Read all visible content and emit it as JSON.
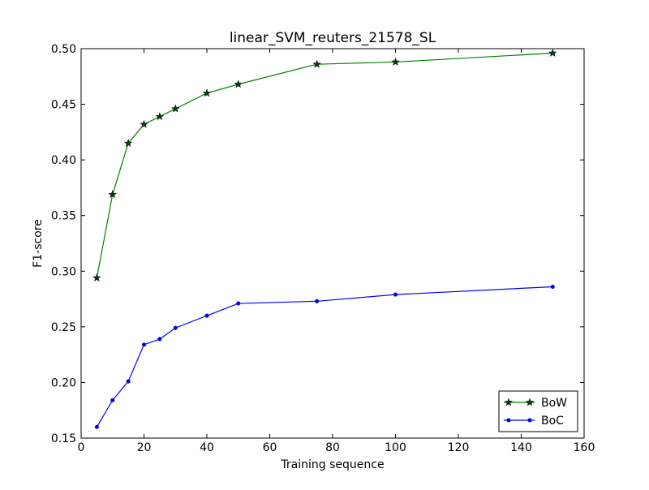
{
  "chart_data": {
    "type": "line",
    "title": "linear_SVM_reuters_21578_SL",
    "xlabel": "Training sequence",
    "ylabel": "F1-score",
    "xlim": [
      0,
      160
    ],
    "ylim": [
      0.15,
      0.5
    ],
    "xticks": [
      0,
      20,
      40,
      60,
      80,
      100,
      120,
      140,
      160
    ],
    "xtick_labels": [
      "0",
      "20",
      "40",
      "60",
      "80",
      "100",
      "120",
      "140",
      "160"
    ],
    "yticks": [
      0.15,
      0.2,
      0.25,
      0.3,
      0.35,
      0.4,
      0.45,
      0.5
    ],
    "ytick_labels": [
      "0.15",
      "0.20",
      "0.25",
      "0.30",
      "0.35",
      "0.40",
      "0.45",
      "0.50"
    ],
    "grid": false,
    "legend_position": "bottom-right",
    "x": [
      5,
      10,
      15,
      20,
      25,
      30,
      40,
      50,
      75,
      100,
      150
    ],
    "series": [
      {
        "name": "BoW",
        "color": "#008000",
        "marker": "star",
        "values": [
          0.294,
          0.369,
          0.415,
          0.432,
          0.439,
          0.446,
          0.46,
          0.468,
          0.486,
          0.488,
          0.496
        ]
      },
      {
        "name": "BoC",
        "color": "#0000ff",
        "marker": "dot",
        "values": [
          0.16,
          0.184,
          0.201,
          0.234,
          0.239,
          0.249,
          0.26,
          0.271,
          0.273,
          0.279,
          0.286
        ]
      }
    ]
  }
}
